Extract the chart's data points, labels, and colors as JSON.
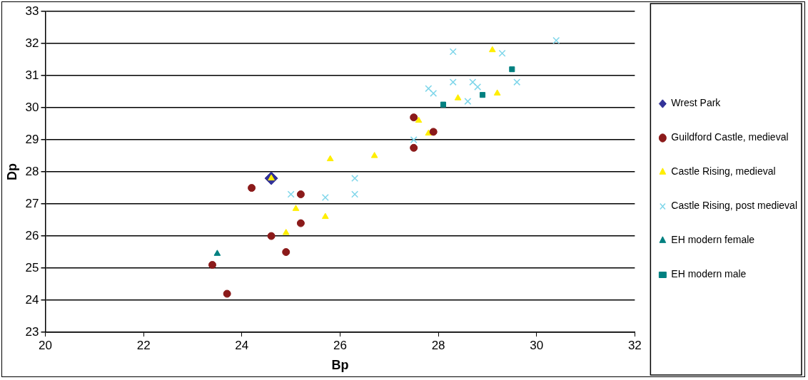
{
  "chart_data": {
    "type": "scatter",
    "xlabel": "Bp",
    "ylabel": "Dp",
    "xlim": [
      20,
      32
    ],
    "xticks": [
      20,
      22,
      24,
      26,
      28,
      30,
      32
    ],
    "ylim": [
      23,
      33
    ],
    "yticks": [
      23,
      24,
      25,
      26,
      27,
      28,
      29,
      30,
      31,
      32,
      33
    ],
    "grid": "y",
    "legend": "right",
    "series": [
      {
        "name": "Wrest Park",
        "color": "#333399",
        "marker": "diamond",
        "x": [
          24.6
        ],
        "values": [
          27.8
        ]
      },
      {
        "name": "Guildford Castle, medieval",
        "color": "#8b1a1a",
        "marker": "circle",
        "x": [
          24.2,
          25.2,
          25.2,
          24.6,
          24.9,
          23.4,
          23.7,
          27.5,
          27.9,
          27.5
        ],
        "values": [
          27.5,
          27.3,
          26.4,
          26.0,
          25.5,
          25.1,
          24.2,
          29.7,
          29.25,
          28.75
        ]
      },
      {
        "name": "Castle Rising, medieval",
        "color": "#ffee00",
        "marker": "triangle",
        "x": [
          24.6,
          25.1,
          25.7,
          24.9,
          25.8,
          26.7,
          27.6,
          27.8,
          28.4,
          29.2,
          29.1
        ],
        "values": [
          27.8,
          26.85,
          26.6,
          26.1,
          28.4,
          28.5,
          29.6,
          29.2,
          30.3,
          30.45,
          31.8
        ]
      },
      {
        "name": "Castle Rising, post medieval",
        "color": "#7fd6ea",
        "marker": "cross",
        "x": [
          25.0,
          25.7,
          26.3,
          26.3,
          27.5,
          27.8,
          27.9,
          28.3,
          28.3,
          28.6,
          28.7,
          28.8,
          29.3,
          29.6,
          30.4
        ],
        "values": [
          27.3,
          27.2,
          27.8,
          27.3,
          29.0,
          30.6,
          30.45,
          30.8,
          31.75,
          30.2,
          30.8,
          30.65,
          31.7,
          30.8,
          32.1
        ]
      },
      {
        "name": "EH modern female",
        "color": "#008080",
        "marker": "triangle",
        "x": [
          23.5
        ],
        "values": [
          25.45
        ]
      },
      {
        "name": "EH modern male",
        "color": "#008080",
        "marker": "square",
        "x": [
          28.1,
          28.9,
          29.5
        ],
        "values": [
          30.1,
          30.4,
          31.2
        ]
      }
    ]
  }
}
